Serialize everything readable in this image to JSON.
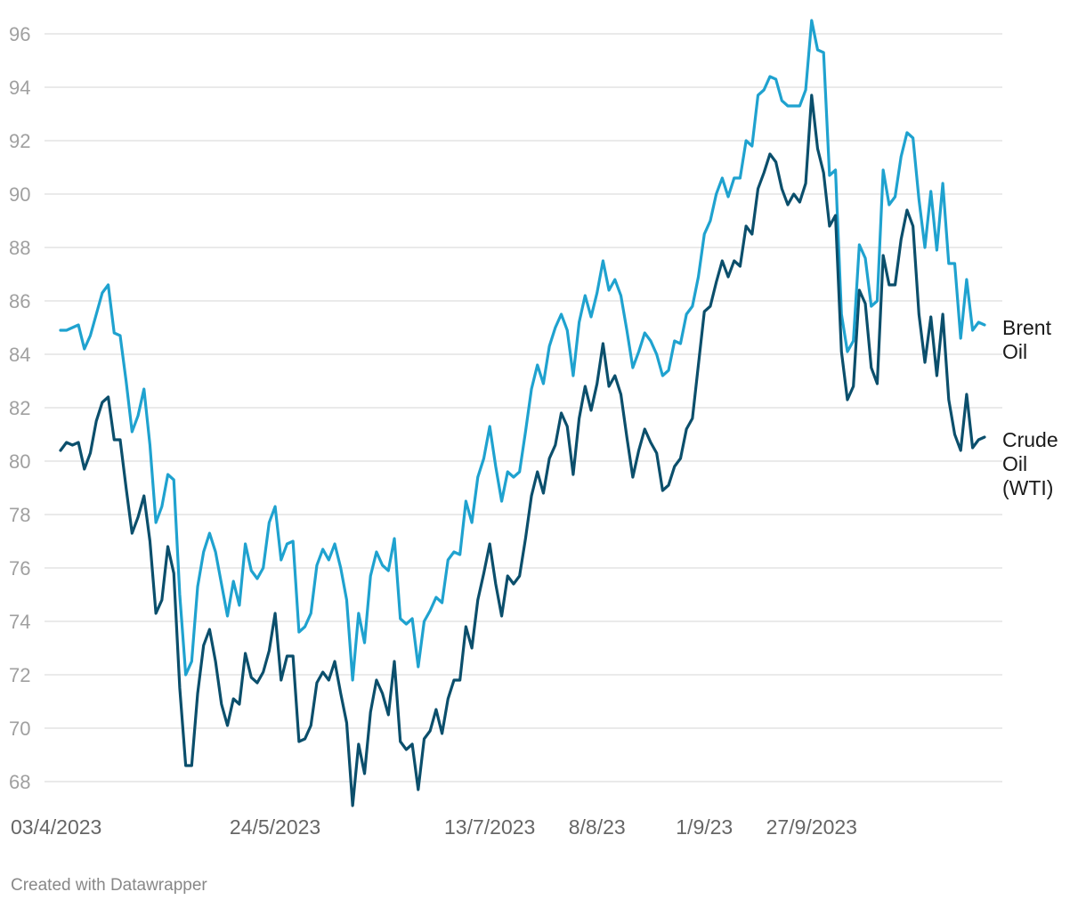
{
  "credit": "Created with Datawrapper",
  "chart_data": {
    "type": "line",
    "ylim": [
      67,
      96.5
    ],
    "y_ticks": [
      68,
      70,
      72,
      74,
      76,
      78,
      80,
      82,
      84,
      86,
      88,
      90,
      92,
      94,
      96
    ],
    "x_tick_labels": [
      {
        "index": 0,
        "label": "03/4/2023"
      },
      {
        "index": 36,
        "label": "24/5/2023"
      },
      {
        "index": 72,
        "label": "13/7/2023"
      },
      {
        "index": 90,
        "label": "8/8/23"
      },
      {
        "index": 108,
        "label": "1/9/23"
      },
      {
        "index": 126,
        "label": "27/9/2023"
      }
    ],
    "grid": true,
    "legend": "end-of-line labels (right)",
    "series": [
      {
        "name": "Brent Oil",
        "label_lines": [
          "Brent",
          "Oil"
        ],
        "color": "#1fa2cf",
        "values": [
          84.9,
          84.9,
          85.0,
          85.1,
          84.2,
          84.7,
          85.5,
          86.3,
          86.6,
          84.8,
          84.7,
          83.0,
          81.1,
          81.7,
          82.7,
          80.6,
          77.7,
          78.3,
          79.5,
          79.3,
          75.0,
          72.0,
          72.5,
          75.3,
          76.6,
          77.3,
          76.6,
          75.4,
          74.2,
          75.5,
          74.6,
          76.9,
          75.9,
          75.6,
          76.0,
          77.7,
          78.3,
          76.3,
          76.9,
          77.0,
          73.6,
          73.8,
          74.3,
          76.1,
          76.7,
          76.3,
          76.9,
          76.0,
          74.8,
          71.8,
          74.3,
          73.2,
          75.7,
          76.6,
          76.1,
          75.9,
          77.1,
          74.1,
          73.9,
          74.1,
          72.3,
          74.0,
          74.4,
          74.9,
          74.7,
          76.3,
          76.6,
          76.5,
          78.5,
          77.7,
          79.4,
          80.1,
          81.3,
          79.8,
          78.5,
          79.6,
          79.4,
          79.6,
          81.1,
          82.7,
          83.6,
          82.9,
          84.3,
          85.0,
          85.5,
          84.9,
          83.2,
          85.2,
          86.2,
          85.4,
          86.3,
          87.5,
          86.4,
          86.8,
          86.2,
          84.9,
          83.5,
          84.1,
          84.8,
          84.5,
          84.0,
          83.2,
          83.4,
          84.5,
          84.4,
          85.5,
          85.8,
          86.9,
          88.5,
          89.0,
          90.0,
          90.6,
          89.9,
          90.6,
          90.6,
          92.0,
          91.8,
          93.7,
          93.9,
          94.4,
          94.3,
          93.5,
          93.3,
          93.3,
          93.3,
          93.9,
          96.5,
          95.4,
          95.3,
          90.7,
          90.9,
          85.5,
          84.1,
          84.5,
          88.1,
          87.6,
          85.8,
          86.0,
          90.9,
          89.6,
          89.9,
          91.4,
          92.3,
          92.1,
          89.8,
          88.0,
          90.1,
          87.9,
          90.4,
          87.4,
          87.4,
          84.6,
          86.8,
          84.9,
          85.2,
          85.1
        ]
      },
      {
        "name": "Crude Oil (WTI)",
        "label_lines": [
          "Crude",
          "Oil",
          "(WTI)"
        ],
        "color": "#0b4f6c",
        "values": [
          80.4,
          80.7,
          80.6,
          80.7,
          79.7,
          80.3,
          81.5,
          82.2,
          82.4,
          80.8,
          80.8,
          79.0,
          77.3,
          77.9,
          78.7,
          77.0,
          74.3,
          74.8,
          76.8,
          75.8,
          71.5,
          68.6,
          68.6,
          71.3,
          73.1,
          73.7,
          72.5,
          70.9,
          70.1,
          71.1,
          70.9,
          72.8,
          71.9,
          71.7,
          72.1,
          72.9,
          74.3,
          71.8,
          72.7,
          72.7,
          69.5,
          69.6,
          70.1,
          71.7,
          72.1,
          71.8,
          72.5,
          71.3,
          70.2,
          67.1,
          69.4,
          68.3,
          70.6,
          71.8,
          71.3,
          70.5,
          72.5,
          69.5,
          69.2,
          69.4,
          67.7,
          69.6,
          69.9,
          70.7,
          69.8,
          71.1,
          71.8,
          71.8,
          73.8,
          73.0,
          74.8,
          75.8,
          76.9,
          75.4,
          74.2,
          75.7,
          75.4,
          75.7,
          77.1,
          78.7,
          79.6,
          78.8,
          80.1,
          80.6,
          81.8,
          81.3,
          79.5,
          81.6,
          82.8,
          81.9,
          82.9,
          84.4,
          82.8,
          83.2,
          82.5,
          80.9,
          79.4,
          80.4,
          81.2,
          80.7,
          80.3,
          78.9,
          79.1,
          79.8,
          80.1,
          81.2,
          81.6,
          83.6,
          85.6,
          85.8,
          86.7,
          87.5,
          86.9,
          87.5,
          87.3,
          88.8,
          88.5,
          90.2,
          90.8,
          91.5,
          91.2,
          90.2,
          89.6,
          90.0,
          89.7,
          90.4,
          93.7,
          91.7,
          90.8,
          88.8,
          89.2,
          84.1,
          82.3,
          82.8,
          86.4,
          85.9,
          83.5,
          82.9,
          87.7,
          86.6,
          86.6,
          88.3,
          89.4,
          88.8,
          85.5,
          83.7,
          85.4,
          83.2,
          85.5,
          82.3,
          81.0,
          80.4,
          82.5,
          80.5,
          80.8,
          80.9
        ]
      }
    ]
  }
}
